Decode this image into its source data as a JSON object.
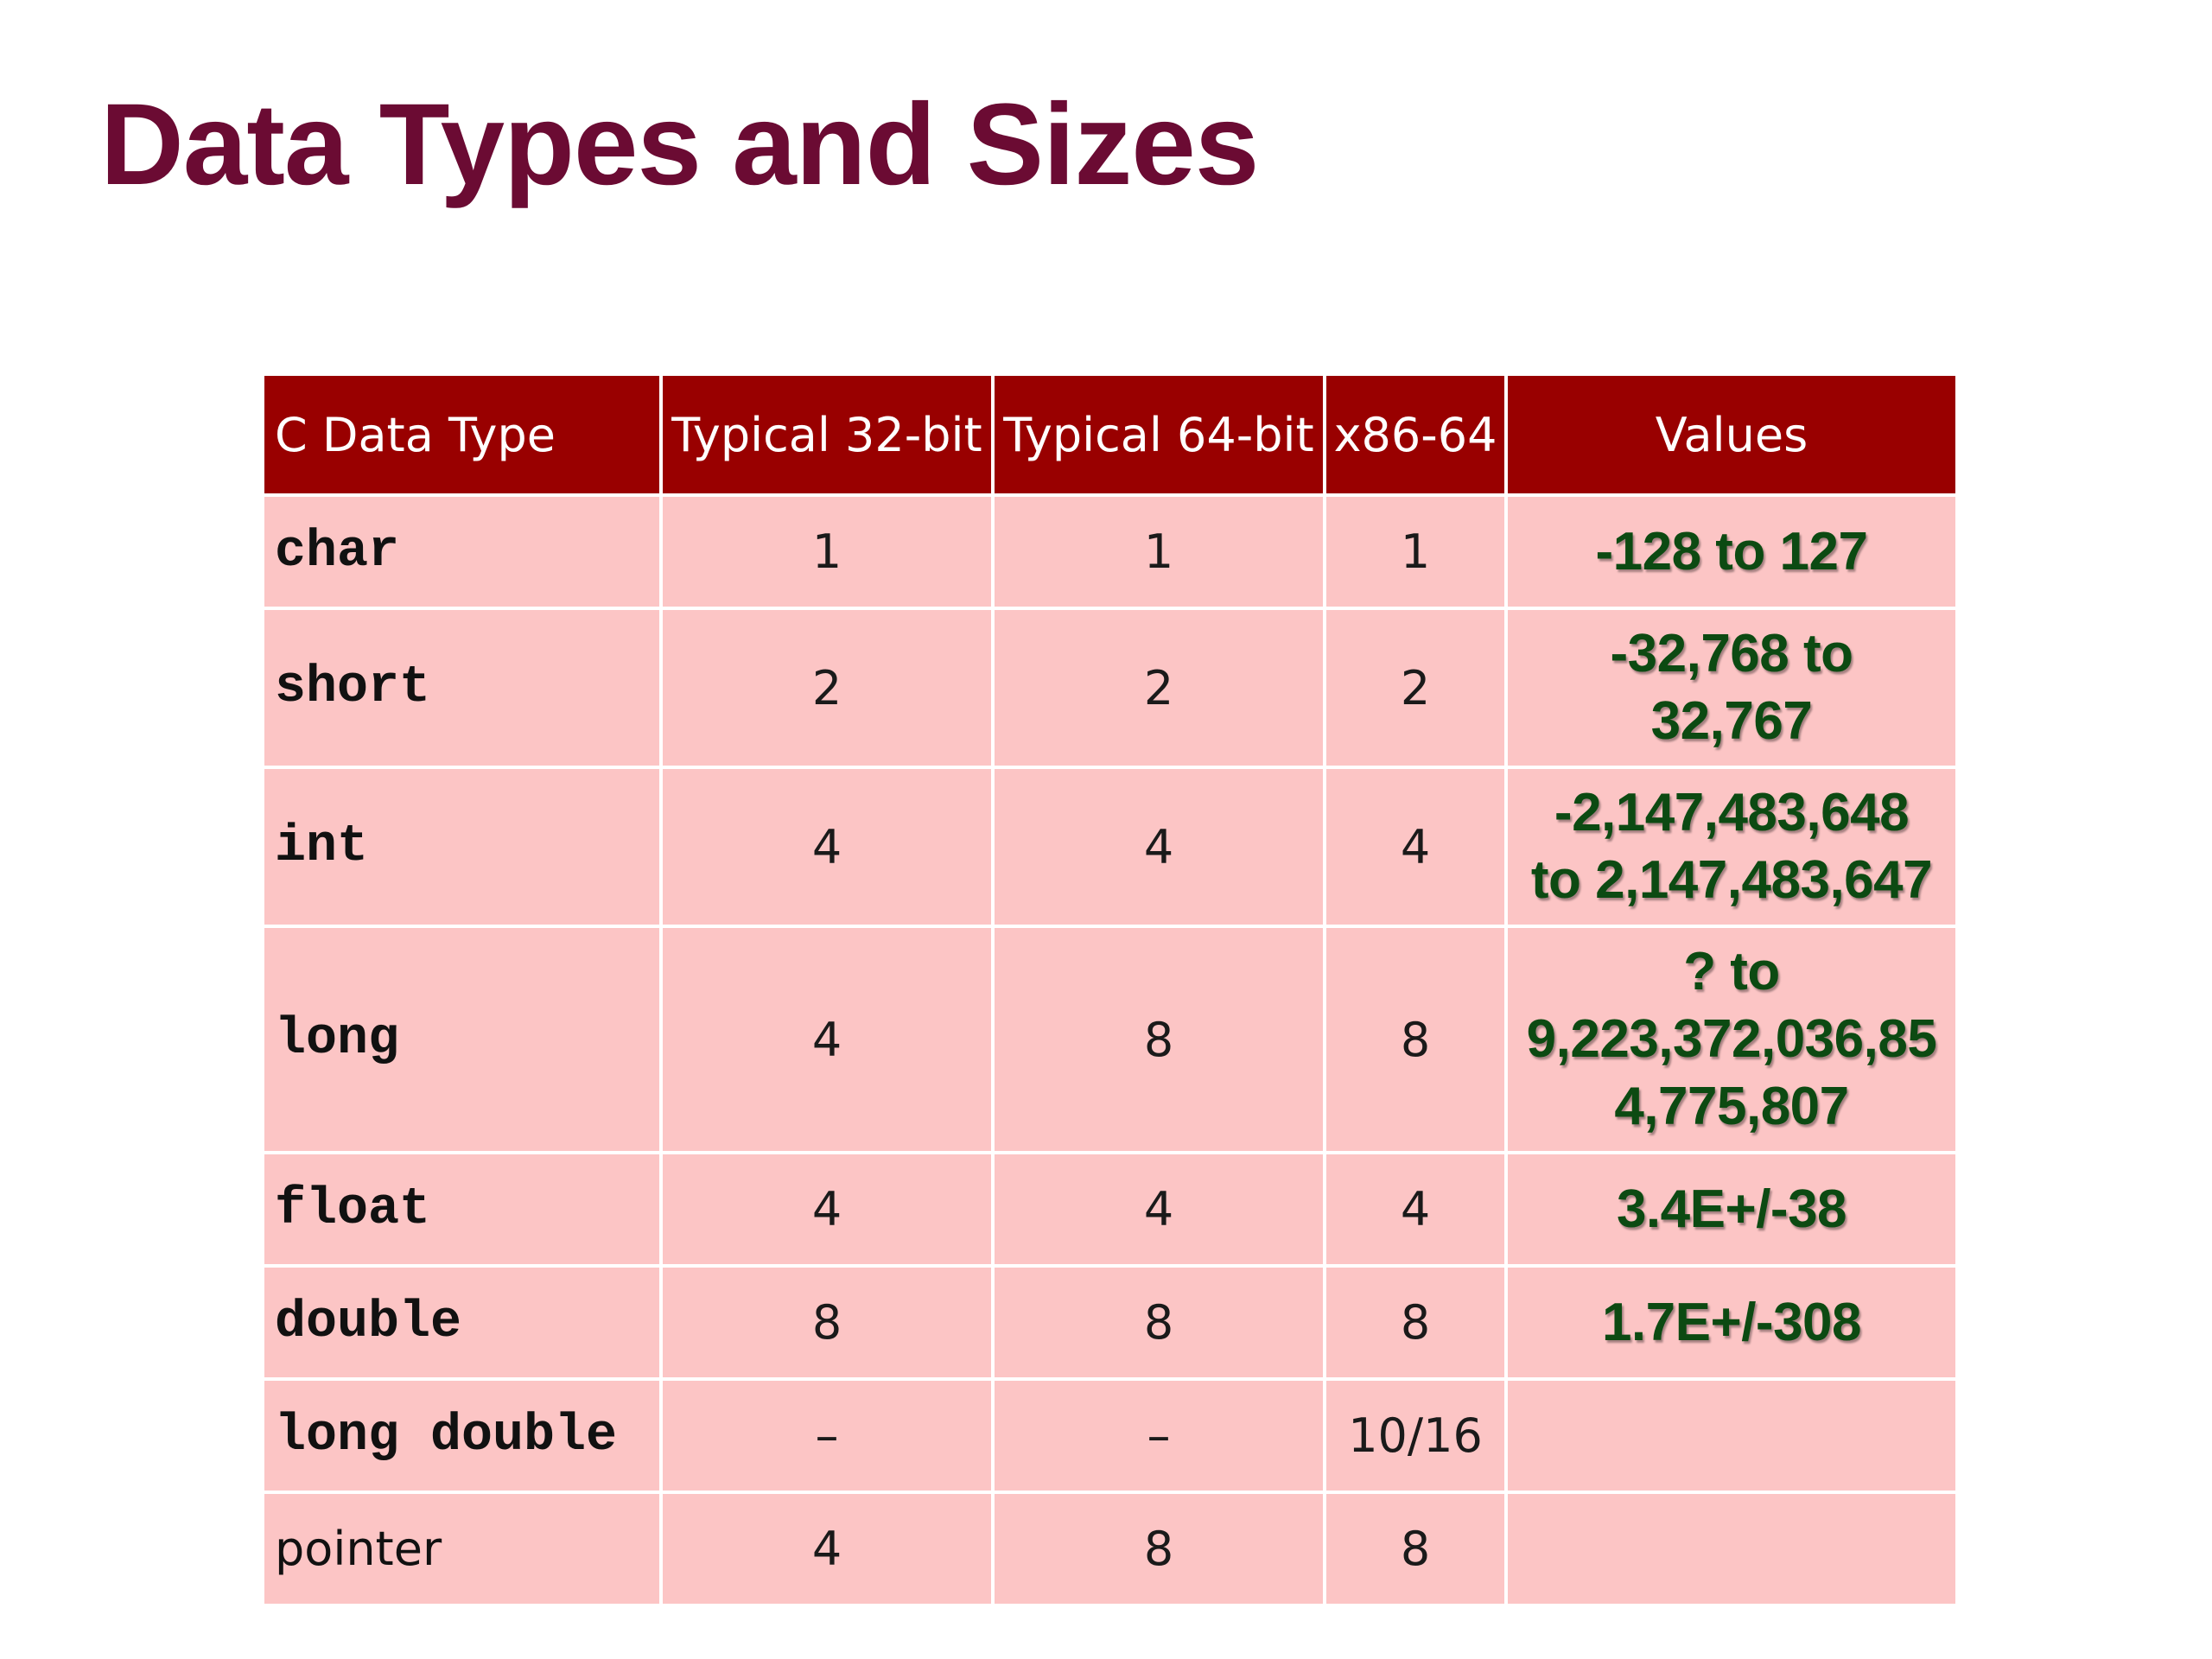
{
  "title": "Data Types and Sizes",
  "table": {
    "headers": [
      "C Data Type",
      "Typical 32-bit",
      "Typical 64-bit",
      "x86-64",
      "Values"
    ],
    "rows": [
      {
        "type": "char",
        "bit32": "1",
        "bit64": "1",
        "x86_64": "1",
        "values": "-128 to 127"
      },
      {
        "type": "short",
        "bit32": "2",
        "bit64": "2",
        "x86_64": "2",
        "values": "-32,768 to\n32,767"
      },
      {
        "type": "int",
        "bit32": "4",
        "bit64": "4",
        "x86_64": "4",
        "values": "-2,147,483,648\nto 2,147,483,647"
      },
      {
        "type": "long",
        "bit32": "4",
        "bit64": "8",
        "x86_64": "8",
        "values": "? to\n9,223,372,036,85\n4,775,807"
      },
      {
        "type": "float",
        "bit32": "4",
        "bit64": "4",
        "x86_64": "4",
        "values": "3.4E+/-38"
      },
      {
        "type": "double",
        "bit32": "8",
        "bit64": "8",
        "x86_64": "8",
        "values": "1.7E+/-308"
      },
      {
        "type": "long double",
        "bit32": "–",
        "bit64": "–",
        "x86_64": "10/16",
        "values": ""
      },
      {
        "type": "pointer",
        "bit32": "4",
        "bit64": "8",
        "x86_64": "8",
        "values": ""
      }
    ]
  },
  "colors": {
    "title": "#6b0b33",
    "header_bg": "#990000",
    "header_text": "#ffffff",
    "row_bg": "#fcc5c5",
    "values_text": "#0c4a12"
  }
}
